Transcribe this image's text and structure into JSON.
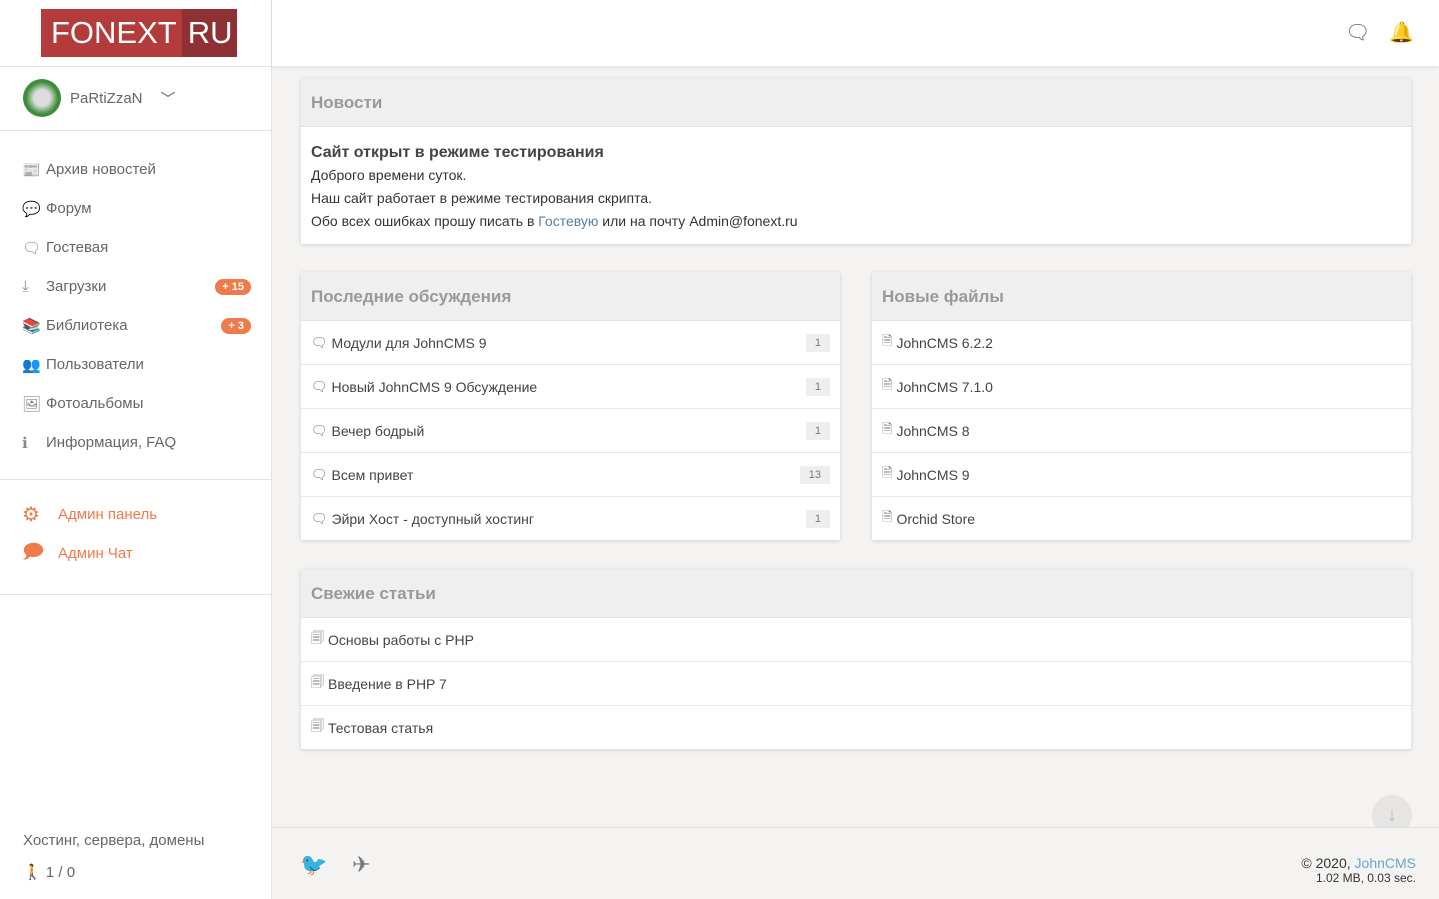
{
  "logo": {
    "part1": "FONEXT",
    "part2": "RU"
  },
  "user": {
    "name": "PaRtiZzaN"
  },
  "nav": [
    {
      "label": "Архив новостей",
      "icon": "newspaper-icon",
      "glyph": "📰"
    },
    {
      "label": "Форум",
      "icon": "chats-icon",
      "glyph": "💬"
    },
    {
      "label": "Гостевая",
      "icon": "chat-bubble-icon",
      "glyph": "🗨"
    },
    {
      "label": "Загрузки",
      "icon": "download-icon",
      "glyph": "⤓",
      "badge": "+ 15"
    },
    {
      "label": "Библиотека",
      "icon": "books-icon",
      "glyph": "📚",
      "badge": "+ 3"
    },
    {
      "label": "Пользователи",
      "icon": "users-icon",
      "glyph": "👥"
    },
    {
      "label": "Фотоальбомы",
      "icon": "photo-icon",
      "glyph": "🖼"
    },
    {
      "label": "Информация, FAQ",
      "icon": "info-icon",
      "glyph": "ℹ"
    }
  ],
  "admin": [
    {
      "label": "Админ панель",
      "icon": "gear-icon",
      "glyph": "⚙"
    },
    {
      "label": "Админ Чат",
      "icon": "chat-icon",
      "glyph": "🗩"
    }
  ],
  "sidebar_footer": {
    "link": "Хостинг, сервера, домены",
    "online": "1 / 0"
  },
  "news": {
    "title": "Новости",
    "heading": "Сайт открыт в режиме тестирования",
    "line1": "Доброго времени суток.",
    "line2": "Наш сайт работает в режиме тестирования скрипта.",
    "line3_pre": "Обо всех ошибках прошу писать в ",
    "line3_link": "Гостевую",
    "line3_post": " или на почту Admin@fonext.ru"
  },
  "discussions": {
    "title": "Последние обсуждения",
    "items": [
      {
        "label": "Модули для JohnCMS 9",
        "count": "1"
      },
      {
        "label": "Новый JohnCMS 9 Обсуждение",
        "count": "1"
      },
      {
        "label": "Вечер бодрый",
        "count": "1"
      },
      {
        "label": "Всем привет",
        "count": "13"
      },
      {
        "label": "Эйри Хост - доступный хостинг",
        "count": "1"
      }
    ]
  },
  "files": {
    "title": "Новые файлы",
    "items": [
      "JohnCMS 6.2.2",
      "JohnCMS 7.1.0",
      "JohnCMS 8",
      "JohnCMS 9",
      "Orchid Store"
    ]
  },
  "articles": {
    "title": "Свежие статьи",
    "items": [
      "Основы работы с PHP",
      "Введение в PHP 7",
      "Тестовая статья"
    ]
  },
  "footer": {
    "copyright": "© 2020, ",
    "cms": "JohnCMS",
    "stats": "1.02 MB, 0.03 sec."
  },
  "colors": {
    "accent": "#ef7a4b",
    "logo": "#b43b3c",
    "link": "#5a7fa0"
  }
}
